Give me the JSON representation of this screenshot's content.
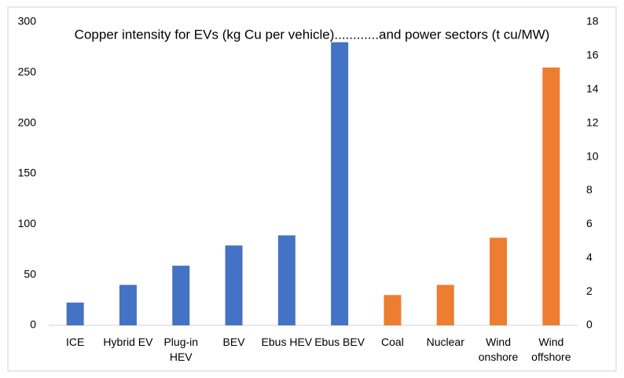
{
  "chart_data": {
    "type": "bar",
    "title": "Copper intensity for EVs (kg Cu per vehicle)............and power sectors (t cu/MW)",
    "categories": [
      "ICE",
      "Hybrid EV",
      "Plug-in HEV",
      "BEV",
      "Ebus HEV",
      "Ebus BEV",
      "Coal",
      "Nuclear",
      "Wind onshore",
      "Wind offshore"
    ],
    "series": [
      {
        "color": "#4472c4",
        "values": [
          22.5,
          40,
          59,
          79,
          89,
          280,
          null,
          null,
          null,
          null
        ]
      },
      {
        "color": "#ed7d31",
        "axis": "y2",
        "values": [
          null,
          null,
          null,
          null,
          null,
          null,
          1.8,
          2.4,
          5.2,
          15.3
        ]
      }
    ],
    "ylim": [
      0,
      300
    ],
    "yticks": [
      0,
      50,
      100,
      150,
      200,
      250,
      300
    ],
    "y2lim": [
      0,
      18
    ],
    "y2ticks": [
      0,
      2,
      4,
      6,
      8,
      10,
      12,
      14,
      16,
      18
    ],
    "grid": false
  }
}
